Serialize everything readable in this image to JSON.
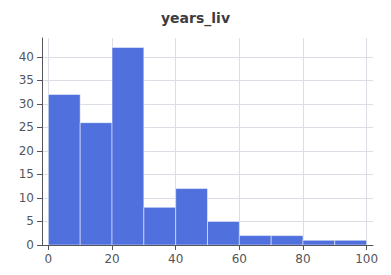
{
  "chart_data": {
    "type": "histogram",
    "title": "years_liv",
    "bins": [
      0,
      10,
      20,
      30,
      40,
      50,
      60,
      70,
      80,
      90,
      100
    ],
    "values": [
      32,
      26,
      42,
      8,
      12,
      5,
      2,
      2,
      1,
      1
    ],
    "xlim": [
      -2,
      102
    ],
    "ylim": [
      0,
      44
    ],
    "xticks": [
      0,
      20,
      40,
      60,
      80,
      100
    ],
    "yticks": [
      0,
      5,
      10,
      15,
      20,
      25,
      30,
      35,
      40
    ],
    "grid": true
  }
}
